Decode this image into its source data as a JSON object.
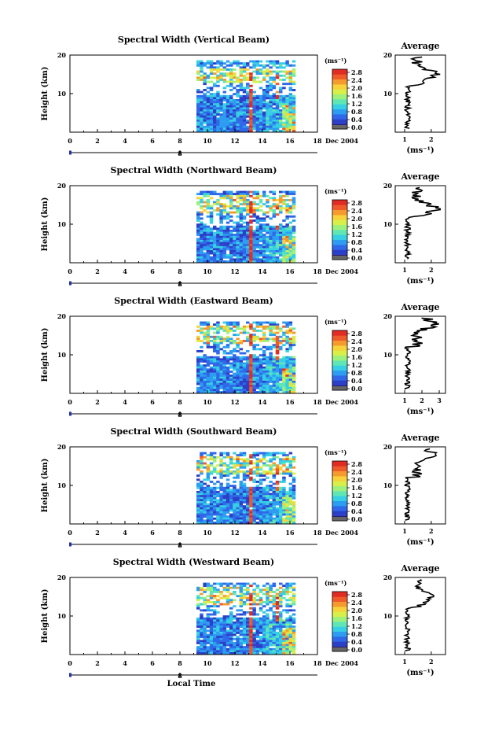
{
  "figure": {
    "time_label": "Local Time",
    "date_label": "Dec 2004",
    "height_label": "Height (km)",
    "unit_label": "(ms⁻¹)",
    "average_title": "Average",
    "cursor_label": "8",
    "colors": {
      "colormap": [
        "#2a1d6b",
        "#2c3fc7",
        "#2f68e8",
        "#2c9df0",
        "#36cfe3",
        "#5fe6b6",
        "#9df07c",
        "#d8ef4a",
        "#f7d23a",
        "#f59a2f",
        "#ef5a2a",
        "#e02c24"
      ],
      "colormap_low_band": "#666666",
      "rain_column": "#f0542c"
    }
  },
  "chart_data": [
    {
      "type": "heatmap",
      "title": "Spectral Width (Vertical Beam)",
      "beam": "vertical",
      "xlabel": "",
      "ylabel": "Height (km)",
      "xlim": [
        0,
        18
      ],
      "ylim": [
        0,
        20
      ],
      "xticks": [
        0,
        2,
        4,
        6,
        8,
        10,
        12,
        14,
        16,
        18
      ],
      "yticks": [
        10,
        20
      ],
      "data_start_hour": 9.2,
      "data_end_hour": 16.3,
      "colorbar": {
        "range": [
          0,
          2.8
        ],
        "ticks": [
          "2.8",
          "2.4",
          "2.0",
          "1.6",
          "1.2",
          "0.8",
          "0.4",
          "0.0"
        ]
      },
      "average": {
        "xlabel": "(ms⁻¹)",
        "xticks": [
          "1",
          "2"
        ],
        "yticks": [
          "10",
          "20"
        ],
        "profile_peak_height_km": 15
      }
    },
    {
      "type": "heatmap",
      "title": "Spectral Width (Northward Beam)",
      "beam": "north",
      "xlabel": "",
      "ylabel": "Height (km)",
      "xlim": [
        0,
        18
      ],
      "ylim": [
        0,
        20
      ],
      "xticks": [
        0,
        2,
        4,
        6,
        8,
        10,
        12,
        14,
        16,
        18
      ],
      "yticks": [
        10,
        20
      ],
      "data_start_hour": 9.2,
      "data_end_hour": 16.3,
      "colorbar": {
        "range": [
          0,
          2.8
        ],
        "ticks": [
          "2.8",
          "2.4",
          "2.0",
          "1.6",
          "1.2",
          "0.8",
          "0.4",
          "0.0"
        ]
      },
      "average": {
        "xlabel": "(ms⁻¹)",
        "xticks": [
          "1",
          "2"
        ],
        "yticks": [
          "10",
          "20"
        ],
        "profile_peak_height_km": 14
      }
    },
    {
      "type": "heatmap",
      "title": "Spectral Width (Eastward Beam)",
      "beam": "east",
      "xlabel": "",
      "ylabel": "Height (km)",
      "xlim": [
        0,
        18
      ],
      "ylim": [
        0,
        20
      ],
      "xticks": [
        0,
        2,
        4,
        6,
        8,
        10,
        12,
        14,
        16,
        18
      ],
      "yticks": [
        10,
        20
      ],
      "data_start_hour": 9.2,
      "data_end_hour": 16.3,
      "colorbar": {
        "range": [
          0,
          2.8
        ],
        "ticks": [
          "2.8",
          "2.4",
          "2.0",
          "1.6",
          "1.2",
          "0.8",
          "0.4",
          "0.0"
        ]
      },
      "average": {
        "xlabel": "(ms⁻¹)",
        "xticks": [
          "1",
          "2",
          "3"
        ],
        "yticks": [
          "10",
          "20"
        ],
        "profile_peak_height_km": 18
      }
    },
    {
      "type": "heatmap",
      "title": "Spectral Width (Southward Beam)",
      "beam": "south",
      "xlabel": "",
      "ylabel": "Height (km)",
      "xlim": [
        0,
        18
      ],
      "ylim": [
        0,
        20
      ],
      "xticks": [
        0,
        2,
        4,
        6,
        8,
        10,
        12,
        14,
        16,
        18
      ],
      "yticks": [
        10,
        20
      ],
      "data_start_hour": 9.2,
      "data_end_hour": 16.3,
      "colorbar": {
        "range": [
          0,
          2.8
        ],
        "ticks": [
          "2.8",
          "2.4",
          "2.0",
          "1.6",
          "1.2",
          "0.8",
          "0.4",
          "0.0"
        ]
      },
      "average": {
        "xlabel": "(ms⁻¹)",
        "xticks": [
          "1",
          "2"
        ],
        "yticks": [
          "10",
          "20"
        ],
        "profile_peak_height_km": 18
      }
    },
    {
      "type": "heatmap",
      "title": "Spectral Width (Westward Beam)",
      "beam": "west",
      "xlabel": "Local Time",
      "ylabel": "Height (km)",
      "xlim": [
        0,
        18
      ],
      "ylim": [
        0,
        20
      ],
      "xticks": [
        0,
        2,
        4,
        6,
        8,
        10,
        12,
        14,
        16,
        18
      ],
      "yticks": [
        10,
        20
      ],
      "data_start_hour": 9.2,
      "data_end_hour": 16.3,
      "colorbar": {
        "range": [
          0,
          2.8
        ],
        "ticks": [
          "2.8",
          "2.4",
          "2.0",
          "1.6",
          "1.2",
          "0.8",
          "0.4",
          "0.0"
        ]
      },
      "average": {
        "xlabel": "(ms⁻¹)",
        "xticks": [
          "1",
          "2"
        ],
        "yticks": [
          "10",
          "20"
        ],
        "profile_peak_height_km": 15
      }
    }
  ]
}
